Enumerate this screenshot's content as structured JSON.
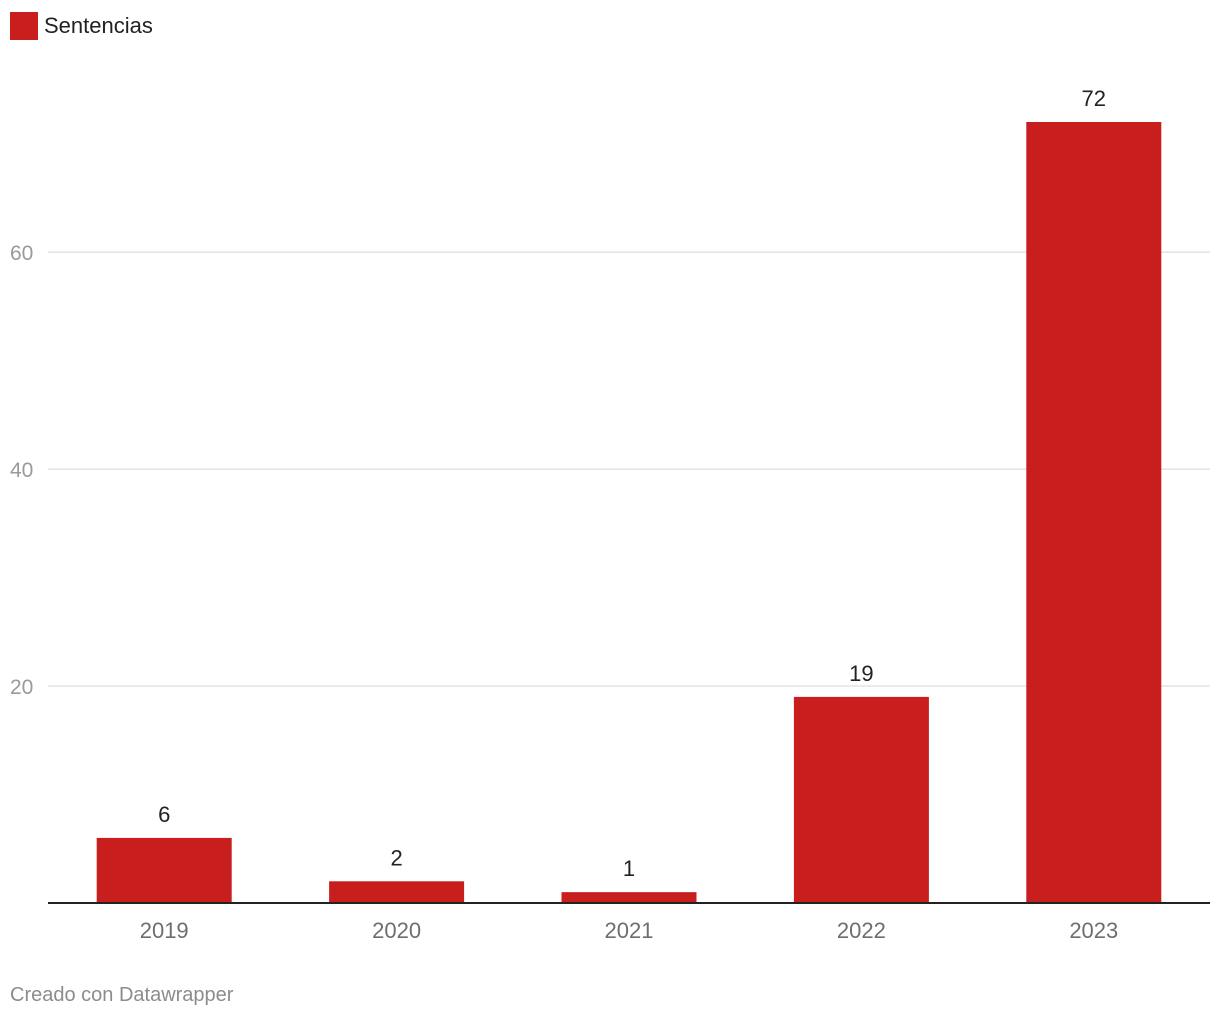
{
  "legend": {
    "label": "Sentencias",
    "color": "#c81e1e"
  },
  "footer": {
    "credit": "Creado con Datawrapper"
  },
  "chart_data": {
    "type": "bar",
    "categories": [
      "2019",
      "2020",
      "2021",
      "2022",
      "2023"
    ],
    "series": [
      {
        "name": "Sentencias",
        "values": [
          6,
          2,
          1,
          19,
          72
        ],
        "color": "#c81e1e"
      }
    ],
    "yticks": [
      20,
      40,
      60
    ],
    "ylim": [
      0,
      72
    ],
    "grid": true,
    "legend_position": "top-left",
    "data_labels": true
  }
}
